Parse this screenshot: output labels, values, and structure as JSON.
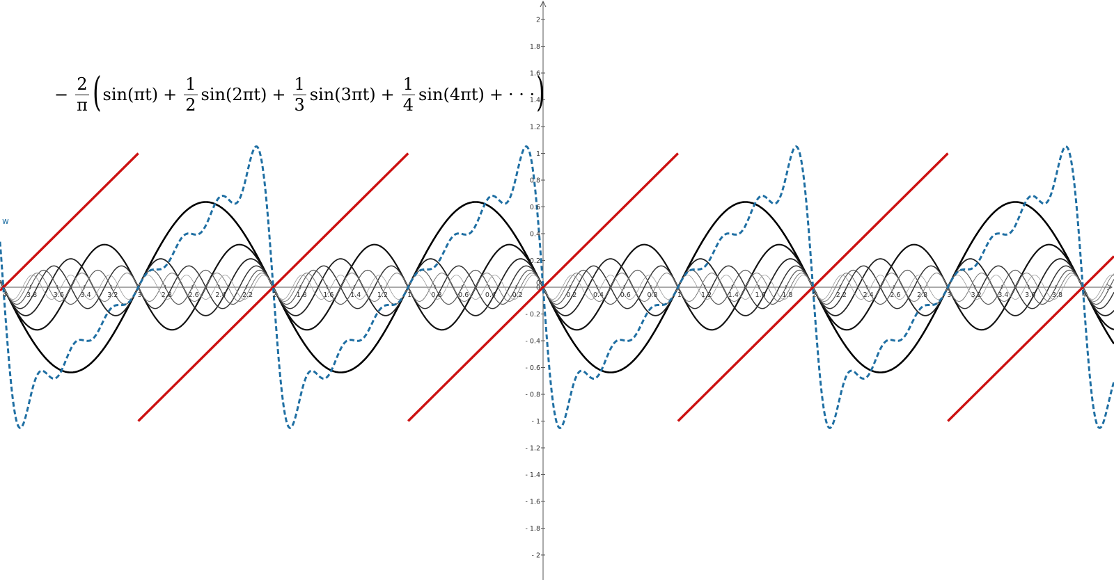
{
  "formula": {
    "lead_sign": "−",
    "lead_num": "2",
    "lead_den": "π",
    "open_paren": "(",
    "close_paren": ")",
    "terms": [
      {
        "coef_num": "",
        "coef_den": "",
        "text": "sin(πt)"
      },
      {
        "coef_num": "1",
        "coef_den": "2",
        "text": "sin(2πt)"
      },
      {
        "coef_num": "1",
        "coef_den": "3",
        "text": "sin(3πt)"
      },
      {
        "coef_num": "1",
        "coef_den": "4",
        "text": "sin(4πt)"
      }
    ],
    "plus": "+",
    "ellipsis": "· · ·"
  },
  "chart_data": {
    "type": "line",
    "xlim": [
      -4.05,
      4.05
    ],
    "ylim": [
      -2.1,
      2.1
    ],
    "grid": false,
    "x_tick_labels": [
      "4",
      "3.8",
      "3.6",
      "3.4",
      "3.2",
      "3",
      "2.8",
      "2.6",
      "2.4",
      "2.2",
      "2",
      "1.8",
      "1.6",
      "1.4",
      "1.2",
      "1",
      "0.8",
      "0.6",
      "0.4",
      "0.2",
      "0",
      "0.2",
      "0.4",
      "0.6",
      "0.8",
      "1",
      "1.2",
      "1.4",
      "1.6",
      "1.8",
      "2",
      "2.2",
      "2.4",
      "2.6",
      "2.8",
      "3",
      "3.2",
      "3.4",
      "3.6",
      "3.8",
      "4"
    ],
    "y_tick_labels": [
      "2",
      "1.8",
      "1.6",
      "1.4",
      "1.2",
      "1",
      "0.8",
      "0.6",
      "0.4",
      "0.2",
      "0",
      "0.2",
      "0.4",
      "0.6",
      "0.8",
      "1",
      "1.2",
      "1.4",
      "1.6",
      "1.8",
      "2"
    ],
    "y_tick_values": [
      2,
      1.8,
      1.6,
      1.4,
      1.2,
      1,
      0.8,
      0.6,
      0.4,
      0.2,
      0,
      -0.2,
      -0.4,
      -0.6,
      -0.8,
      -1,
      -1.2,
      -1.4,
      -1.6,
      -1.8,
      -2
    ],
    "harmonics": [
      {
        "n": 1,
        "coefficient": -0.6366,
        "color": "#000000"
      },
      {
        "n": 2,
        "coefficient": -0.3183,
        "color": "#111111"
      },
      {
        "n": 3,
        "coefficient": -0.2122,
        "color": "#222222"
      },
      {
        "n": 4,
        "coefficient": -0.1592,
        "color": "#333333"
      },
      {
        "n": 5,
        "coefficient": -0.1273,
        "color": "#555555"
      },
      {
        "n": 6,
        "coefficient": -0.1061,
        "color": "#777777"
      },
      {
        "n": 7,
        "coefficient": -0.0909,
        "color": "#999999"
      }
    ],
    "sawtooth": {
      "period": 2,
      "slope": 1,
      "color": "#cc1111"
    },
    "partial_sum": {
      "terms": 7,
      "color": "#1f6fa3",
      "dashed": true
    },
    "series_label": "w"
  }
}
